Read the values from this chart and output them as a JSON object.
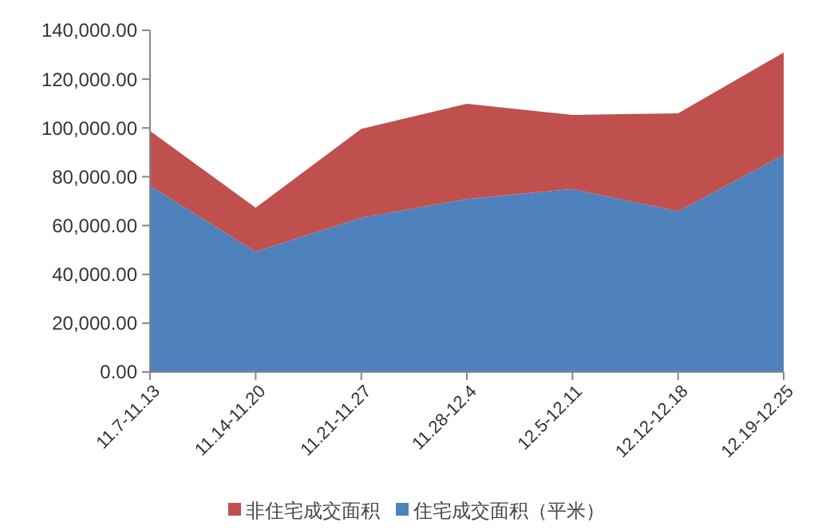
{
  "chart_data": {
    "type": "area",
    "stacked": true,
    "categories": [
      "11.7-11.13",
      "11.14-11.20",
      "11.21-11.27",
      "11.28-12.4",
      "12.5-12.11",
      "12.12-12.18",
      "12.19-12.25"
    ],
    "series": [
      {
        "name": "住宅成交面积（平米）",
        "color": "#4f81bd",
        "values": [
          76300,
          49300,
          63200,
          70900,
          75000,
          65800,
          89000
        ]
      },
      {
        "name": "非住宅成交面积",
        "color": "#c0504d",
        "values": [
          22500,
          18000,
          36400,
          39000,
          30300,
          40200,
          41900
        ]
      }
    ],
    "ylim": [
      0,
      140000
    ],
    "yticks": [
      {
        "value": 0,
        "label": "0.00"
      },
      {
        "value": 20000,
        "label": "20,000.00"
      },
      {
        "value": 40000,
        "label": "40,000.00"
      },
      {
        "value": 60000,
        "label": "60,000.00"
      },
      {
        "value": 80000,
        "label": "80,000.00"
      },
      {
        "value": 100000,
        "label": "100,000.00"
      },
      {
        "value": 120000,
        "label": "120,000.00"
      },
      {
        "value": 140000,
        "label": "140,000.00"
      }
    ],
    "grid": false,
    "legend": "bottom"
  }
}
